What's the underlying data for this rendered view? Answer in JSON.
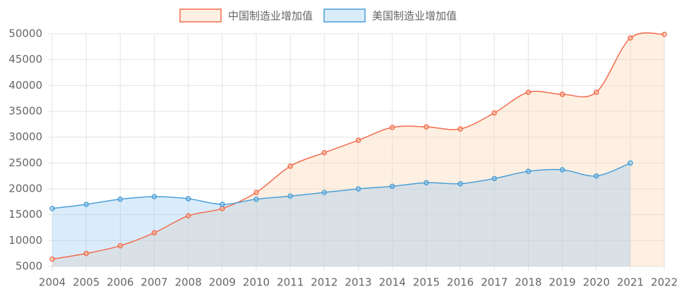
{
  "chart_data": {
    "type": "line",
    "categories": [
      "2004",
      "2005",
      "2006",
      "2007",
      "2008",
      "2009",
      "2010",
      "2011",
      "2012",
      "2013",
      "2014",
      "2015",
      "2016",
      "2017",
      "2018",
      "2019",
      "2020",
      "2021",
      "2022"
    ],
    "series": [
      {
        "name": "中国制造业增加值",
        "color": "#f36c4f",
        "fill": "rgba(250,215,180,0.4)",
        "values": [
          6400,
          7500,
          9000,
          11500,
          14800,
          16200,
          19300,
          24400,
          27000,
          29400,
          31900,
          32000,
          31600,
          34700,
          38700,
          38300,
          38700,
          49200,
          49900
        ]
      },
      {
        "name": "美国制造业增加值",
        "color": "#4a9fd8",
        "fill": "rgba(150,200,240,0.35)",
        "values": [
          16200,
          17000,
          18000,
          18500,
          18100,
          17000,
          18000,
          18600,
          19300,
          20000,
          20500,
          21200,
          21000,
          22000,
          23400,
          23700,
          22500,
          25000,
          null
        ]
      }
    ],
    "ylim": [
      5000,
      50000
    ],
    "yticks": [
      5000,
      10000,
      15000,
      20000,
      25000,
      30000,
      35000,
      40000,
      45000,
      50000
    ],
    "grid": true,
    "legend": "top"
  }
}
